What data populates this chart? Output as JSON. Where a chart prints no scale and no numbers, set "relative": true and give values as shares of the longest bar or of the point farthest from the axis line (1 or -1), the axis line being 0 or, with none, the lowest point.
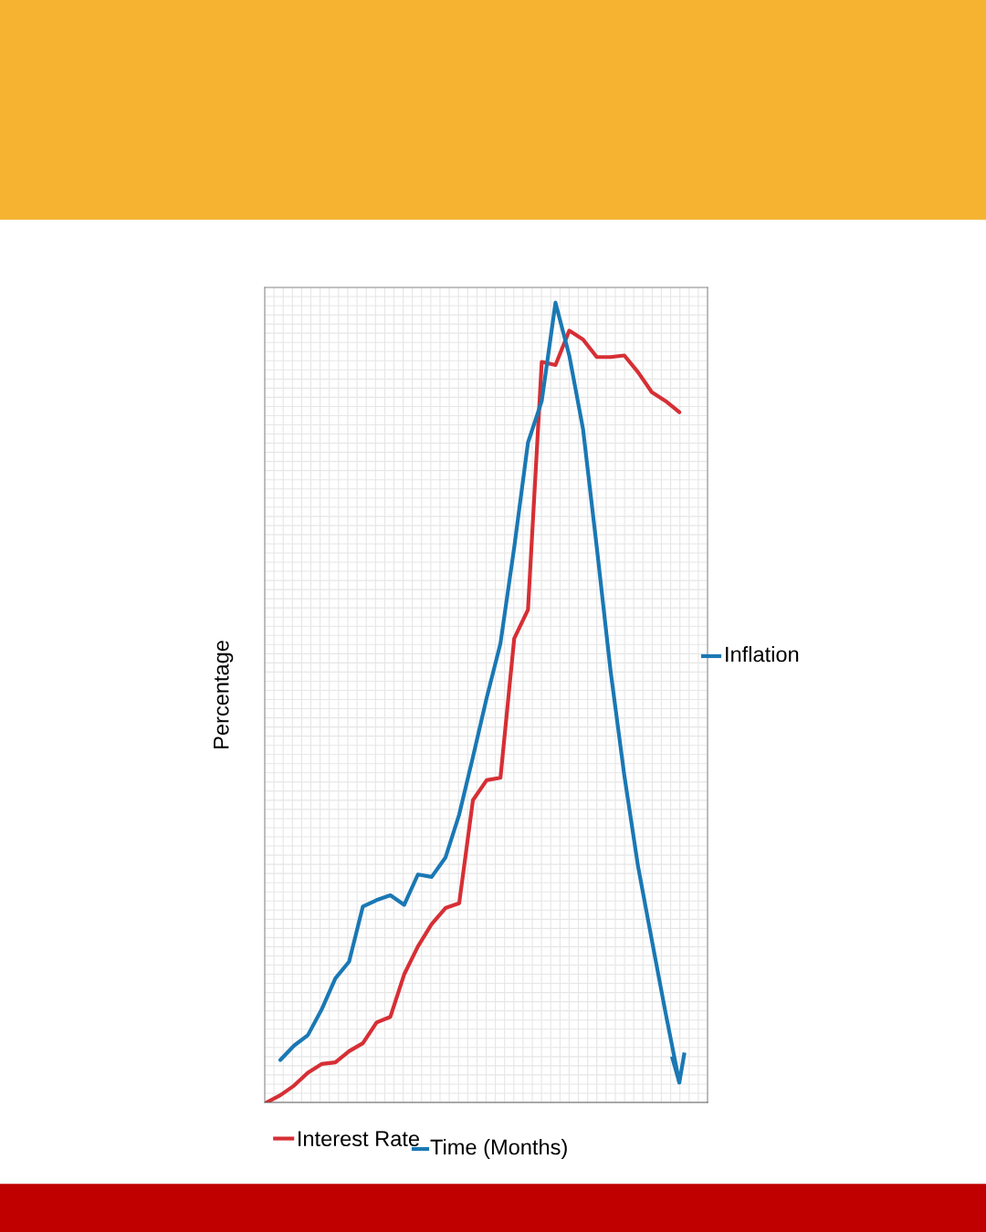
{
  "chart_data": {
    "type": "line",
    "relative": true,
    "ylabel": "Percentage",
    "xlabel": "Time (Months)",
    "grid": true,
    "legend": "bottom",
    "line_style": "solid",
    "marker": "none",
    "categories": [
      null,
      null,
      null,
      null,
      null,
      null,
      null,
      null,
      null,
      null,
      null,
      null,
      null,
      null,
      null,
      null,
      null,
      null,
      null,
      null,
      null,
      null,
      null,
      null,
      null,
      null,
      null,
      null,
      null,
      null,
      null
    ],
    "series": [
      {
        "name": "Interest Rate",
        "color": "#d62f35",
        "values": [
          0,
          0.009,
          0.021,
          0.037,
          0.048,
          0.05,
          0.064,
          0.074,
          0.1,
          0.107,
          0.16,
          0.195,
          0.223,
          0.243,
          0.249,
          0.378,
          0.403,
          0.406,
          0.58,
          0.616,
          0.926,
          0.922,
          0.965,
          0.954,
          0.932,
          0.932,
          0.934,
          0.913,
          0.888,
          0.877,
          0.863
        ]
      },
      {
        "name": "Inflation",
        "color": "#1a78b4",
        "values": [
          null,
          0.053,
          0.071,
          0.084,
          0.116,
          0.155,
          0.176,
          0.245,
          0.253,
          0.259,
          0.247,
          0.285,
          0.282,
          0.306,
          0.36,
          0.432,
          0.506,
          0.574,
          0.694,
          0.825,
          0.877,
          1,
          0.934,
          0.842,
          0.694,
          0.54,
          0.409,
          0.295,
          0.203,
          0.112,
          0.025
        ]
      }
    ]
  }
}
